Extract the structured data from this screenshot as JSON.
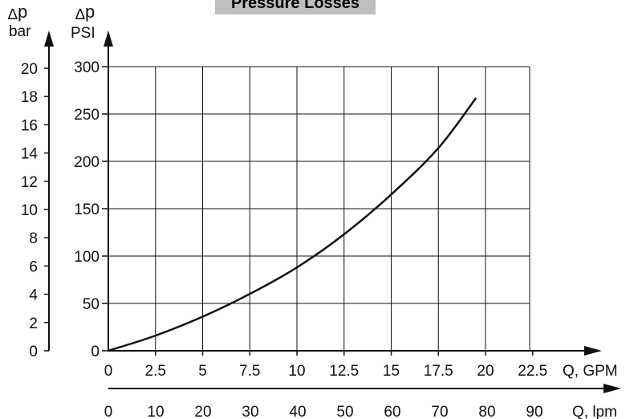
{
  "chart_data": {
    "type": "line",
    "title": "Pressure Losses",
    "x_primary": {
      "label": "Q, GPM",
      "ticks": [
        0,
        2.5,
        5,
        7.5,
        10,
        12.5,
        15,
        17.5,
        20,
        22.5
      ],
      "range": [
        0,
        25
      ]
    },
    "x_secondary": {
      "label": "Q, lpm",
      "ticks": [
        0,
        10,
        20,
        30,
        40,
        50,
        60,
        70,
        80,
        90
      ]
    },
    "y_primary": {
      "label_symbol": "Δp",
      "label_unit": "PSI",
      "ticks": [
        0,
        50,
        100,
        150,
        200,
        250,
        300
      ],
      "range": [
        0,
        300
      ]
    },
    "y_secondary": {
      "label_symbol": "Δp",
      "label_unit": "bar",
      "ticks": [
        0,
        2,
        4,
        6,
        8,
        10,
        12,
        14,
        16,
        18,
        20
      ]
    },
    "grid": true,
    "series": [
      {
        "x": [
          0,
          2.5,
          5,
          7.5,
          10,
          12.5,
          15,
          17.5,
          19.5
        ],
        "y": [
          0,
          16,
          36,
          60,
          88,
          123,
          165,
          214,
          267
        ]
      }
    ]
  }
}
